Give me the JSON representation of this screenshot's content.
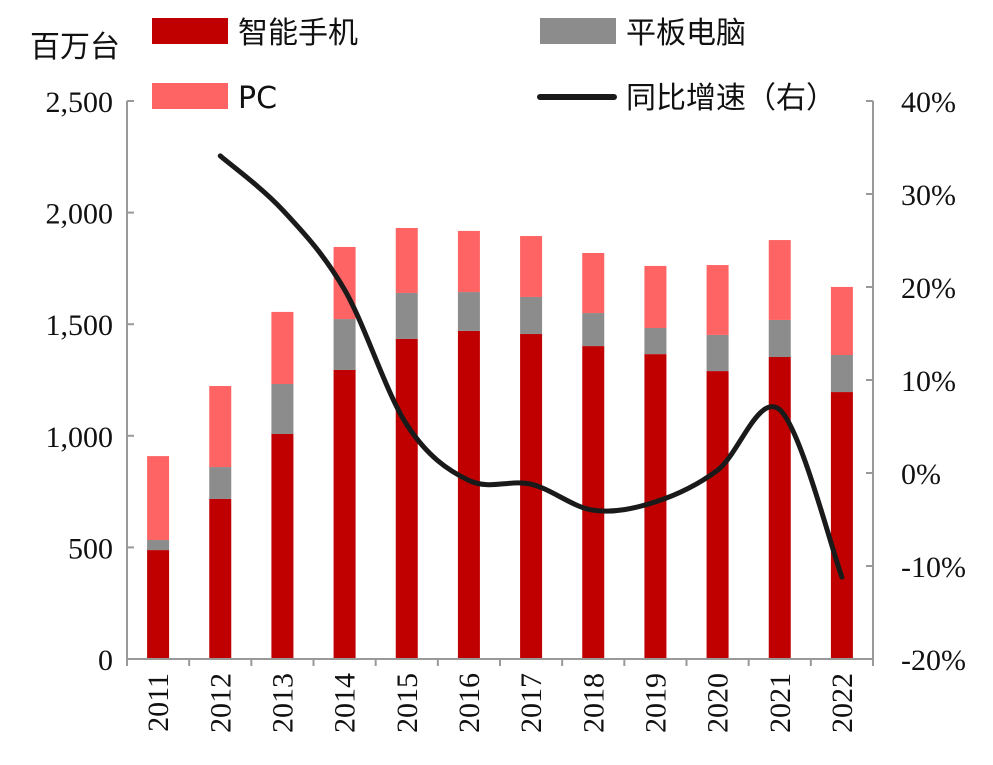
{
  "chart_data": {
    "type": "bar",
    "stacked": true,
    "unit_label": "百万台",
    "categories": [
      "2011",
      "2012",
      "2013",
      "2014",
      "2015",
      "2016",
      "2017",
      "2018",
      "2019",
      "2020",
      "2021",
      "2022"
    ],
    "series": [
      {
        "name": "智能手机",
        "axis": "left",
        "color": "#c00000",
        "values": [
          488,
          717,
          1008,
          1295,
          1434,
          1470,
          1456,
          1402,
          1366,
          1290,
          1353,
          1196
        ]
      },
      {
        "name": "平板电脑",
        "axis": "left",
        "color": "#8c8c8c",
        "values": [
          45,
          143,
          224,
          228,
          206,
          174,
          166,
          148,
          117,
          162,
          166,
          166
        ]
      },
      {
        "name": "PC",
        "axis": "left",
        "color": "#ff6464",
        "values": [
          376,
          363,
          323,
          323,
          291,
          274,
          273,
          269,
          278,
          313,
          358,
          305
        ]
      },
      {
        "name": "同比增速（右）",
        "axis": "right",
        "type": "line",
        "color": "#1a1a1a",
        "values": [
          null,
          34.1,
          28.3,
          19.7,
          5.2,
          -0.8,
          -1.2,
          -4.0,
          -3.1,
          0.3,
          6.8,
          -11.2
        ]
      }
    ],
    "left_axis": {
      "ylim": [
        0,
        2500
      ],
      "ticks": [
        0,
        500,
        1000,
        1500,
        2000,
        2500
      ],
      "tick_labels": [
        "0",
        "500",
        "1,000",
        "1,500",
        "2,000",
        "2,500"
      ]
    },
    "right_axis": {
      "ylim": [
        -20,
        40
      ],
      "ticks": [
        -20,
        -10,
        0,
        10,
        20,
        30,
        40
      ],
      "tick_labels": [
        "-20%",
        "-10%",
        "0%",
        "10%",
        "20%",
        "30%",
        "40%"
      ]
    },
    "grid": false,
    "legend_placement": "top"
  }
}
